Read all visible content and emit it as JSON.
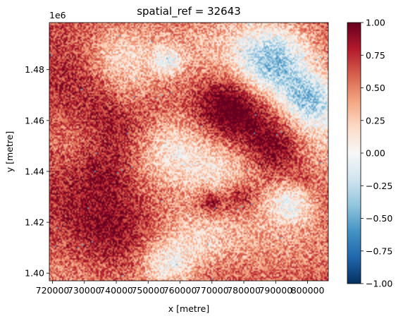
{
  "chart_data": {
    "type": "heatmap",
    "title": "spatial_ref = 32643",
    "xlabel": "x [metre]",
    "ylabel": "y [metre]",
    "y_offset_text": "1e6",
    "xlim": [
      719000,
      806500
    ],
    "ylim": [
      1397000,
      1498500
    ],
    "x_ticks": [
      720000,
      730000,
      740000,
      750000,
      760000,
      770000,
      780000,
      790000,
      800000
    ],
    "x_tick_labels": [
      "720000",
      "730000",
      "740000",
      "750000",
      "760000",
      "770000",
      "780000",
      "790000",
      "800000"
    ],
    "y_ticks": [
      1400000,
      1420000,
      1440000,
      1460000,
      1480000
    ],
    "y_tick_labels": [
      "1.40",
      "1.42",
      "1.44",
      "1.46",
      "1.48"
    ],
    "colorbar": {
      "colormap": "RdBu_r",
      "vmin": -1.0,
      "vmax": 1.0,
      "ticks": [
        -1.0,
        -0.75,
        -0.5,
        -0.25,
        0.0,
        0.25,
        0.5,
        0.75,
        1.0
      ],
      "tick_labels": [
        "−1.00",
        "−0.75",
        "−0.50",
        "−0.25",
        "0.00",
        "0.25",
        "0.50",
        "0.75",
        "1.00"
      ]
    },
    "grid": false
  },
  "colors": {
    "colormap_stops": [
      "#053061",
      "#2166ac",
      "#4393c3",
      "#92c5de",
      "#d1e5f0",
      "#f7f7f7",
      "#fddbc7",
      "#f4a582",
      "#d6604d",
      "#b2182b",
      "#67001f"
    ]
  }
}
